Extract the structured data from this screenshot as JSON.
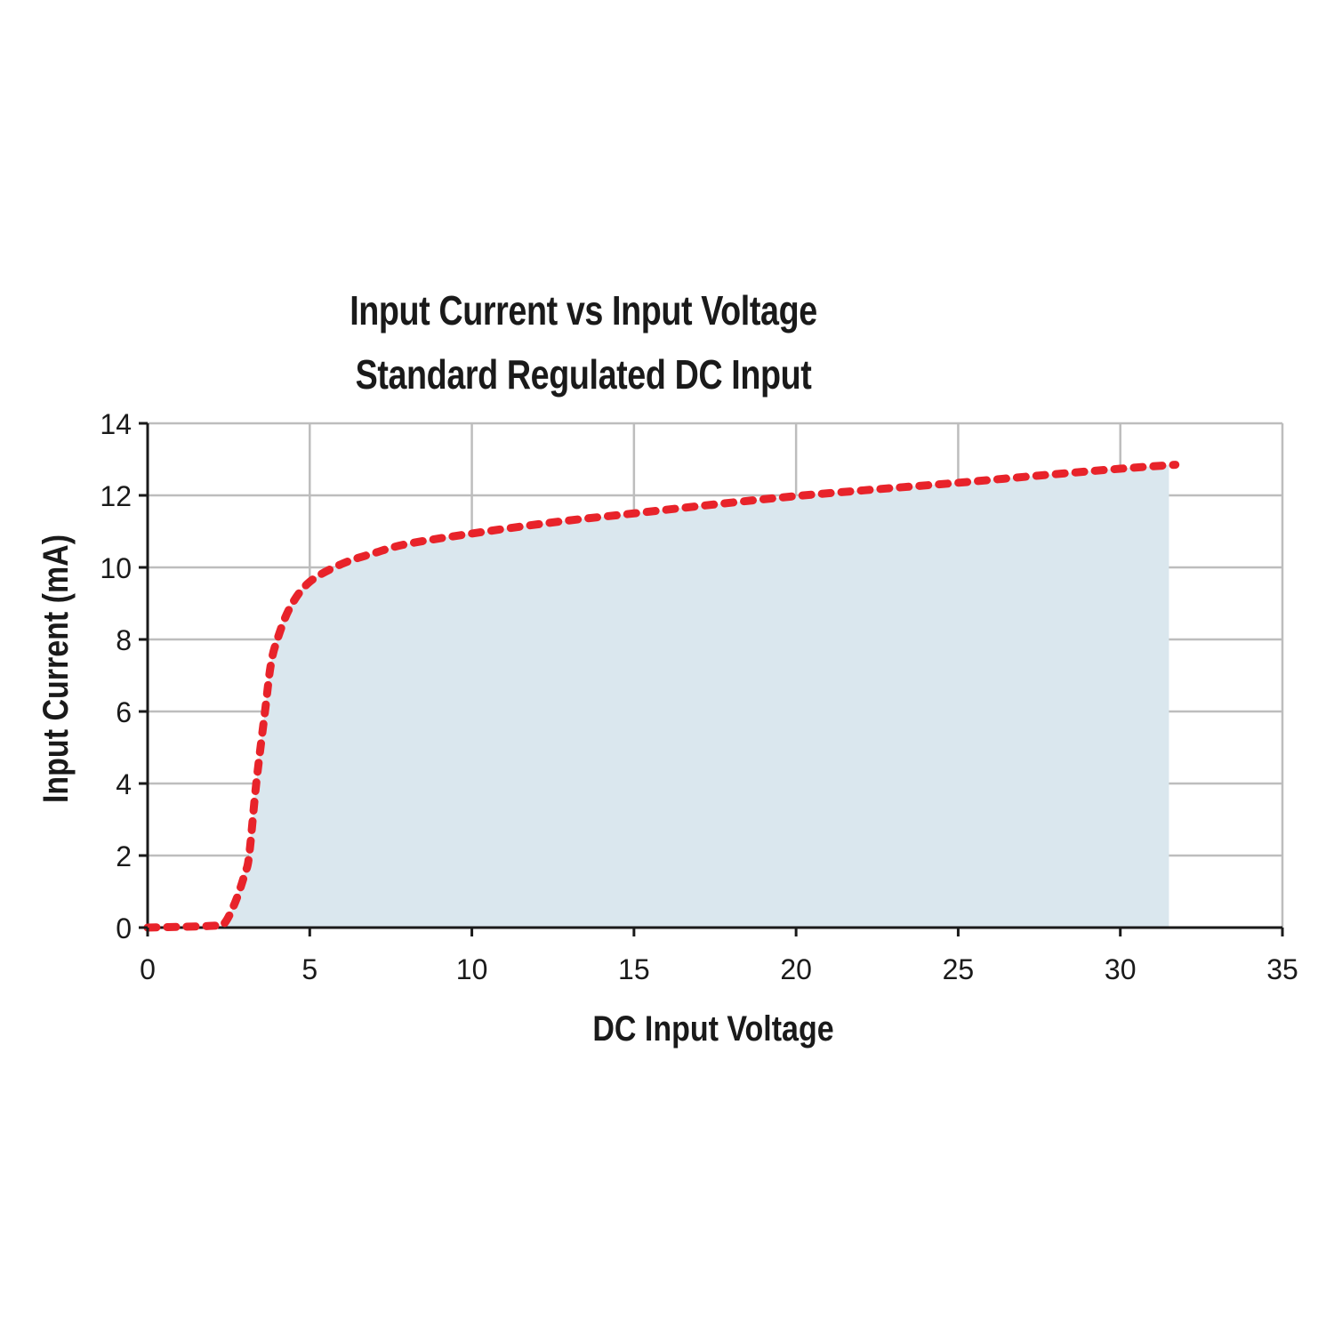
{
  "chart_data": {
    "type": "area",
    "title": "Input Current vs Input Voltage",
    "subtitle": "Standard Regulated DC Input",
    "xlabel": "DC Input Voltage",
    "ylabel": "Input Current (mA)",
    "xlim": [
      0,
      35
    ],
    "ylim": [
      0,
      14
    ],
    "x_ticks": [
      0,
      5,
      10,
      15,
      20,
      25,
      30,
      35
    ],
    "y_ticks": [
      0,
      2,
      4,
      6,
      8,
      10,
      12,
      14
    ],
    "grid": true,
    "legend": null,
    "series": [
      {
        "name": "Input Current",
        "style": "dashed line with shaded area",
        "line_color": "#e8232a",
        "fill_color": "#dae7ee",
        "x": [
          0,
          1,
          2,
          2.35,
          2.7,
          3.0,
          3.13,
          3.35,
          3.62,
          3.8,
          4.0,
          4.4,
          5.0,
          6.0,
          7.0,
          8.0,
          10.0,
          12.5,
          15.0,
          17.5,
          20.0,
          22.5,
          25.0,
          27.5,
          30.0,
          31.7
        ],
        "y": [
          0,
          0.02,
          0.05,
          0.1,
          0.7,
          1.5,
          2.0,
          4.0,
          6.0,
          7.3,
          8.0,
          8.9,
          9.6,
          10.1,
          10.4,
          10.65,
          10.94,
          11.25,
          11.5,
          11.75,
          11.98,
          12.17,
          12.35,
          12.55,
          12.74,
          12.85
        ]
      }
    ]
  },
  "title_line1": "Input Current vs Input Voltage",
  "title_line2": "Standard Regulated DC Input",
  "x_axis_label": "DC Input Voltage",
  "y_axis_label": "Input Current (mA)",
  "x_tick_labels": [
    "0",
    "5",
    "10",
    "15",
    "20",
    "25",
    "30",
    "35"
  ],
  "y_tick_labels": [
    "0",
    "2",
    "4",
    "6",
    "8",
    "10",
    "12",
    "14"
  ],
  "colors": {
    "line": "#e8232a",
    "fill": "#dae7ee",
    "grid": "#bdbdbd",
    "axis": "#1a1a1a"
  }
}
